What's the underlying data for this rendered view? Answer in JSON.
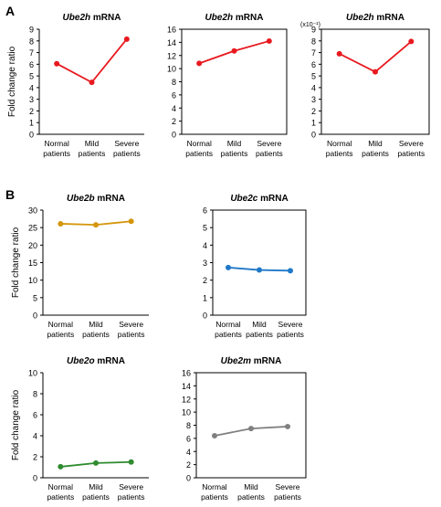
{
  "figure": {
    "panel_a_label": "A",
    "panel_b_label": "B"
  },
  "chart_data": [
    {
      "type": "line",
      "panel": "A",
      "title_gene": "Ube2h",
      "title_suffix": " mRNA",
      "ylabel": "Fold change ratio",
      "yscale_note": "",
      "ylim": [
        0,
        9
      ],
      "yticks": [
        0,
        1,
        2,
        3,
        4,
        5,
        6,
        7,
        8,
        9
      ],
      "categories": [
        [
          "Normal",
          "patients"
        ],
        [
          "Mild",
          "patients"
        ],
        [
          "Severe",
          "patients"
        ]
      ],
      "framed": false,
      "color": "#e8191f",
      "series": [
        {
          "values": [
            6.05,
            4.45,
            8.15
          ]
        }
      ]
    },
    {
      "type": "line",
      "panel": "A",
      "title_gene": "Ube2h",
      "title_suffix": " mRNA",
      "ylabel": "",
      "yscale_note": "",
      "ylim": [
        0,
        16
      ],
      "yticks": [
        0,
        2,
        4,
        6,
        8,
        10,
        12,
        14,
        16
      ],
      "categories": [
        [
          "Normal",
          "patients"
        ],
        [
          "Mild",
          "patients"
        ],
        [
          "Severe",
          "patients"
        ]
      ],
      "framed": true,
      "color": "#e8191f",
      "series": [
        {
          "values": [
            10.8,
            12.7,
            14.2
          ]
        }
      ]
    },
    {
      "type": "line",
      "panel": "A",
      "title_gene": "Ube2h",
      "title_suffix": " mRNA",
      "ylabel": "",
      "yscale_note": "(x10⁻¹)",
      "ylim": [
        0,
        9
      ],
      "yticks": [
        0,
        1,
        2,
        3,
        4,
        5,
        6,
        7,
        8,
        9
      ],
      "categories": [
        [
          "Normal",
          "patients"
        ],
        [
          "Mild",
          "patients"
        ],
        [
          "Severe",
          "patients"
        ]
      ],
      "framed": true,
      "color": "#e8191f",
      "series": [
        {
          "values": [
            6.9,
            5.35,
            7.95
          ]
        }
      ]
    },
    {
      "type": "line",
      "panel": "B",
      "title_gene": "Ube2b",
      "title_suffix": " mRNA",
      "ylabel": "Fold change ratio",
      "yscale_note": "",
      "ylim": [
        0,
        30
      ],
      "yticks": [
        0,
        5,
        10,
        15,
        20,
        25,
        30
      ],
      "categories": [
        [
          "Normal",
          "patients"
        ],
        [
          "Mild",
          "patients"
        ],
        [
          "Severe",
          "patients"
        ]
      ],
      "framed": false,
      "color": "#d4960c",
      "series": [
        {
          "values": [
            26.1,
            25.8,
            26.8
          ]
        }
      ]
    },
    {
      "type": "line",
      "panel": "B",
      "title_gene": "Ube2c",
      "title_suffix": " mRNA",
      "ylabel": "",
      "yscale_note": "",
      "ylim": [
        0,
        6
      ],
      "yticks": [
        0,
        1,
        2,
        3,
        4,
        5,
        6
      ],
      "categories": [
        [
          "Normal",
          "patients"
        ],
        [
          "Mild",
          "patients"
        ],
        [
          "Severe",
          "patients"
        ]
      ],
      "framed": true,
      "color": "#1f78c8",
      "series": [
        {
          "values": [
            2.72,
            2.58,
            2.54
          ]
        }
      ]
    },
    {
      "type": "line",
      "panel": "B",
      "title_gene": "Ube2o",
      "title_suffix": " mRNA",
      "ylabel": "Fold change ratio",
      "yscale_note": "",
      "ylim": [
        0,
        10
      ],
      "yticks": [
        0,
        2,
        4,
        6,
        8,
        10
      ],
      "categories": [
        [
          "Normal",
          "patients"
        ],
        [
          "Mild",
          "patients"
        ],
        [
          "Severe",
          "patients"
        ]
      ],
      "framed": false,
      "color": "#2e8b2e",
      "series": [
        {
          "values": [
            1.05,
            1.4,
            1.5
          ]
        }
      ]
    },
    {
      "type": "line",
      "panel": "B",
      "title_gene": "Ube2m",
      "title_suffix": " mRNA",
      "ylabel": "",
      "yscale_note": "",
      "ylim": [
        0,
        16
      ],
      "yticks": [
        0,
        2,
        4,
        6,
        8,
        10,
        12,
        14,
        16
      ],
      "categories": [
        [
          "Normal",
          "patients"
        ],
        [
          "Mild",
          "patients"
        ],
        [
          "Severe",
          "patients"
        ]
      ],
      "framed": true,
      "color": "#808080",
      "series": [
        {
          "values": [
            6.4,
            7.5,
            7.8
          ]
        }
      ]
    }
  ]
}
